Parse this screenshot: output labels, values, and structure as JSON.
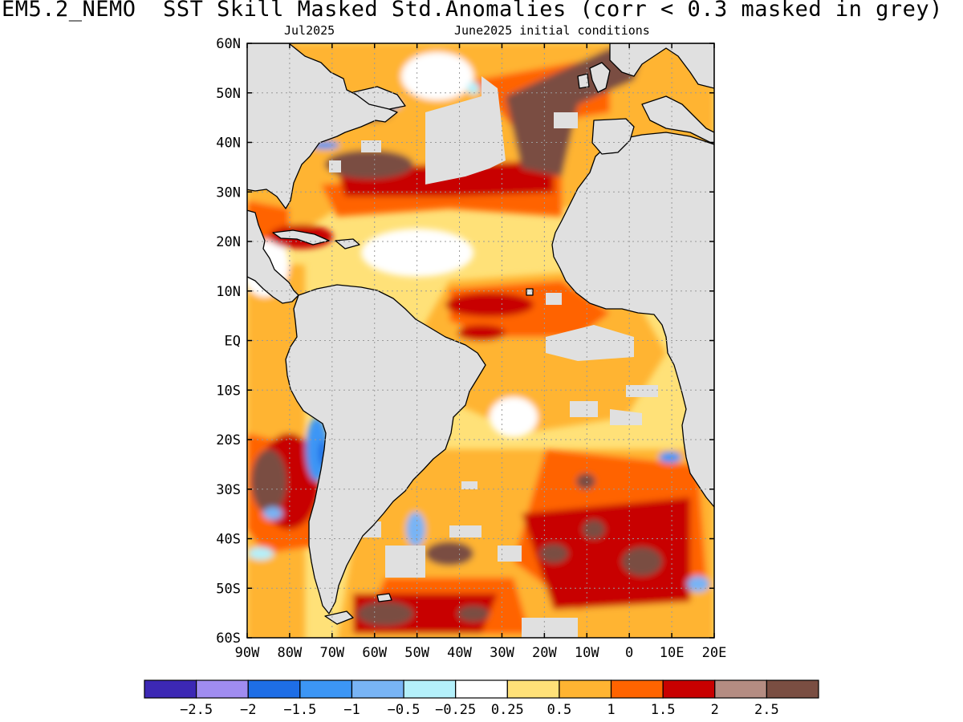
{
  "header": {
    "title": "EM5.2_NEMO  SST Skill Masked Std.Anomalies (corr < 0.3 masked in grey)",
    "valid_month": "Jul2025",
    "init_conditions": "June2025 initial conditions"
  },
  "map": {
    "lat_labels": [
      "60N",
      "50N",
      "40N",
      "30N",
      "20N",
      "10N",
      "EQ",
      "10S",
      "20S",
      "30S",
      "40S",
      "50S",
      "60S"
    ],
    "lon_labels": [
      "90W",
      "80W",
      "70W",
      "60W",
      "50W",
      "40W",
      "30W",
      "20W",
      "10W",
      "0",
      "10E",
      "20E"
    ],
    "lon_range": [
      -90,
      20
    ],
    "lat_range": [
      -60,
      60
    ],
    "mask_color": "#e0e0e0"
  },
  "colorbar": {
    "colors": [
      "#3c28b4",
      "#a08cf0",
      "#1e6ee6",
      "#3c96f5",
      "#78b4f5",
      "#b4f0fa",
      "#ffffff",
      "#ffe178",
      "#ffb432",
      "#ff6400",
      "#c80000",
      "#b48c82",
      "#7a4e42"
    ],
    "labels": [
      "−2.5",
      "−2",
      "−1.5",
      "−1",
      "−0.5",
      "−0.25",
      "0.25",
      "0.5",
      "1",
      "1.5",
      "2",
      "2.5"
    ]
  }
}
